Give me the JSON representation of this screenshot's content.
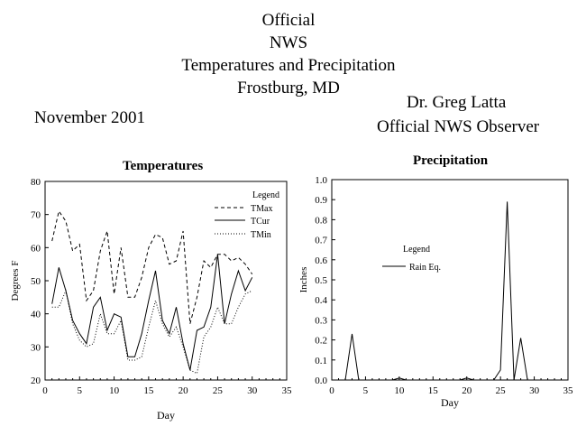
{
  "header": {
    "lines": [
      "Official",
      "NWS",
      "Temperatures and Precipitation",
      "Frostburg, MD"
    ],
    "month": "November 2001",
    "observer_name": "Dr. Greg Latta",
    "observer_title": "Official NWS Observer"
  },
  "chart_data": [
    {
      "type": "line",
      "title": "Temperatures",
      "xlabel": "Day",
      "ylabel": "Degrees F",
      "xlim": [
        0,
        35
      ],
      "ylim": [
        20,
        80
      ],
      "xticks": [
        "0",
        "5",
        "10",
        "15",
        "20",
        "25",
        "30",
        "35"
      ],
      "yticks": [
        "20",
        "30",
        "40",
        "50",
        "60",
        "70",
        "80"
      ],
      "legend_title": "Legend",
      "legend_position": "top-right",
      "x": [
        1,
        2,
        3,
        4,
        5,
        6,
        7,
        8,
        9,
        10,
        11,
        12,
        13,
        14,
        15,
        16,
        17,
        18,
        19,
        20,
        21,
        22,
        23,
        24,
        25,
        26,
        27,
        28,
        29,
        30
      ],
      "series": [
        {
          "name": "TMax",
          "dash": "4,3",
          "values": [
            62,
            71,
            68,
            59,
            61,
            44,
            47,
            59,
            65,
            46,
            60,
            45,
            45,
            51,
            60,
            64,
            63,
            55,
            56,
            65,
            37,
            45,
            56,
            54,
            58,
            58,
            56,
            57,
            55,
            52
          ]
        },
        {
          "name": "TCur",
          "dash": "",
          "values": [
            43,
            54,
            47,
            38,
            34,
            31,
            42,
            45,
            35,
            40,
            39,
            27,
            27,
            34,
            44,
            53,
            38,
            34,
            42,
            31,
            23,
            35,
            36,
            42,
            58,
            37,
            46,
            53,
            47,
            51
          ]
        },
        {
          "name": "TMin",
          "dash": "1,2",
          "values": [
            42,
            42,
            47,
            37,
            32,
            30,
            31,
            40,
            34,
            34,
            38,
            26,
            26,
            27,
            36,
            44,
            37,
            33,
            36,
            30,
            23,
            22,
            33,
            36,
            42,
            37,
            37,
            42,
            46,
            47
          ]
        }
      ]
    },
    {
      "type": "line",
      "title": "Precipitation",
      "xlabel": "Day",
      "ylabel": "Inches",
      "xlim": [
        0,
        35
      ],
      "ylim": [
        0,
        1.0
      ],
      "xticks": [
        "0",
        "5",
        "10",
        "15",
        "20",
        "25",
        "30",
        "35"
      ],
      "yticks": [
        "0.0",
        "0.1",
        "0.2",
        "0.3",
        "0.4",
        "0.5",
        "0.6",
        "0.7",
        "0.8",
        "0.9",
        "1.0"
      ],
      "legend_title": "Legend",
      "legend_position": "center-left",
      "x": [
        1,
        2,
        3,
        4,
        5,
        6,
        7,
        8,
        9,
        10,
        11,
        12,
        13,
        14,
        15,
        16,
        17,
        18,
        19,
        20,
        21,
        22,
        23,
        24,
        25,
        26,
        27,
        28,
        29,
        30
      ],
      "series": [
        {
          "name": "Rain Eq.",
          "dash": "",
          "values": [
            0,
            0,
            0.23,
            0,
            0,
            0,
            0,
            0,
            0,
            0.01,
            0,
            0,
            0,
            0,
            0,
            0,
            0,
            0,
            0,
            0.01,
            0,
            0,
            0,
            0,
            0.05,
            0.89,
            0,
            0.21,
            0,
            0
          ]
        }
      ]
    }
  ]
}
